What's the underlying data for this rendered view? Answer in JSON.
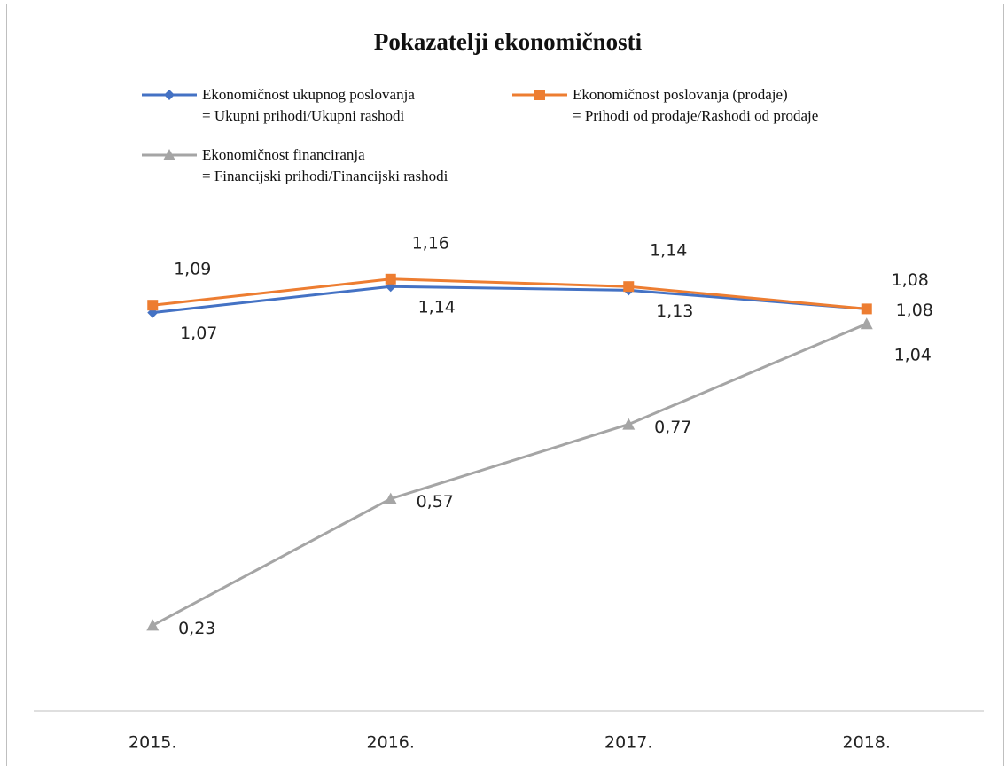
{
  "chart_data": {
    "type": "line",
    "title": "Pokazatelji ekonomičnosti",
    "categories": [
      "2015.",
      "2016.",
      "2017.",
      "2018."
    ],
    "ylim": [
      0,
      1.4
    ],
    "series": [
      {
        "name": "Ekonomičnost ukupnog poslovanja\n= Ukupni prihodi/Ukupni rashodi",
        "color": "#4472c4",
        "marker": "diamond",
        "values": [
          1.07,
          1.14,
          1.13,
          1.08
        ],
        "value_labels": [
          "1,07",
          "1,14",
          "1,13",
          "1,08"
        ]
      },
      {
        "name": "Ekonomičnost poslovanja (prodaje)\n= Prihodi od prodaje/Rashodi od prodaje",
        "color": "#ed7d31",
        "marker": "square",
        "values": [
          1.09,
          1.16,
          1.14,
          1.08
        ],
        "value_labels": [
          "1,09",
          "1,16",
          "1,14",
          "1,08"
        ]
      },
      {
        "name": "Ekonomičnost financiranja\n= Financijski prihodi/Financijski rashodi",
        "color": "#a5a5a5",
        "marker": "triangle",
        "values": [
          0.23,
          0.57,
          0.77,
          1.04
        ],
        "value_labels": [
          "0,23",
          "0,57",
          "0,77",
          "1,04"
        ]
      }
    ]
  }
}
